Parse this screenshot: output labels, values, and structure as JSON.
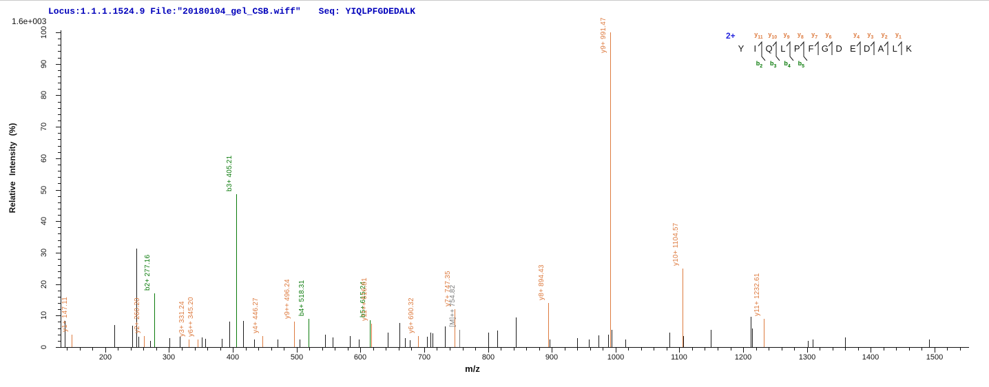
{
  "header": {
    "locus_file": "Locus:1.1.1.1524.9 File:\"20180104_gel_CSB.wiff\"",
    "seq": "Seq: YIQLPFGDEDALK"
  },
  "scale_label": "1.6e+003",
  "colors": {
    "y_ion": "#dd7a3e",
    "b_ion": "#0a7a0a",
    "unassigned": "#1a1a1a",
    "precursor": "#7a7a7a",
    "header_blue": "#0000bb",
    "charge_blue": "#2222dd",
    "axis": "#111111"
  },
  "chart_data": {
    "type": "bar",
    "subtype": "mass-spectrum-stick-plot",
    "title": "",
    "xlabel": "m/z",
    "ylabel": "Relative Intensity (%)",
    "xlim": [
      130,
      1553
    ],
    "ylim": [
      0,
      100
    ],
    "x_major_tick_step": 100,
    "x_minor_tick_step": 20,
    "x_tick_labels": [
      200,
      300,
      400,
      500,
      600,
      700,
      800,
      900,
      1000,
      1100,
      1200,
      1300,
      1400,
      1500
    ],
    "y_major_tick_step": 10,
    "y_minor_tick_step": 2,
    "y_tick_labels": [
      0,
      10,
      20,
      30,
      40,
      50,
      60,
      70,
      80,
      90,
      100
    ],
    "grid": false,
    "legend": "none",
    "peaks": [
      {
        "mz": 136.5,
        "intensity": 8.3,
        "type": "unassigned",
        "label": null
      },
      {
        "mz": 147.11,
        "intensity": 4.0,
        "type": "y",
        "label": "y1+ 147.11"
      },
      {
        "mz": 214.0,
        "intensity": 7.0,
        "type": "unassigned",
        "label": null
      },
      {
        "mz": 242.0,
        "intensity": 6.7,
        "type": "unassigned",
        "label": null
      },
      {
        "mz": 249.0,
        "intensity": 31.4,
        "type": "unassigned",
        "label": null
      },
      {
        "mz": 252.5,
        "intensity": 3.3,
        "type": "unassigned",
        "label": null
      },
      {
        "mz": 260.2,
        "intensity": 3.5,
        "type": "y",
        "label": "y2+ 260.20"
      },
      {
        "mz": 270.0,
        "intensity": 2.0,
        "type": "unassigned",
        "label": null
      },
      {
        "mz": 277.16,
        "intensity": 17.0,
        "type": "b",
        "label": "b2+ 277.16"
      },
      {
        "mz": 301.0,
        "intensity": 2.8,
        "type": "unassigned",
        "label": null
      },
      {
        "mz": 317.0,
        "intensity": 3.3,
        "type": "unassigned",
        "label": null
      },
      {
        "mz": 331.24,
        "intensity": 2.5,
        "type": "y",
        "label": "y3+ 331.24"
      },
      {
        "mz": 345.2,
        "intensity": 2.5,
        "type": "y",
        "label": "y6++ 345.20"
      },
      {
        "mz": 351.0,
        "intensity": 3.0,
        "type": "unassigned",
        "label": null
      },
      {
        "mz": 357.0,
        "intensity": 2.7,
        "type": "unassigned",
        "label": null
      },
      {
        "mz": 383.0,
        "intensity": 2.7,
        "type": "unassigned",
        "label": null
      },
      {
        "mz": 395.0,
        "intensity": 8.1,
        "type": "unassigned",
        "label": null
      },
      {
        "mz": 405.21,
        "intensity": 48.5,
        "type": "b",
        "label": "b3+ 405.21"
      },
      {
        "mz": 416.0,
        "intensity": 8.3,
        "type": "unassigned",
        "label": null
      },
      {
        "mz": 433.0,
        "intensity": 2.5,
        "type": "unassigned",
        "label": null
      },
      {
        "mz": 446.27,
        "intensity": 3.5,
        "type": "y",
        "label": "y4+ 446.27"
      },
      {
        "mz": 470.0,
        "intensity": 2.3,
        "type": "unassigned",
        "label": null
      },
      {
        "mz": 496.24,
        "intensity": 8.0,
        "type": "y",
        "label": "y9++ 496.24"
      },
      {
        "mz": 505.0,
        "intensity": 2.5,
        "type": "unassigned",
        "label": null
      },
      {
        "mz": 518.31,
        "intensity": 9.0,
        "type": "b",
        "label": "b4+ 518.31"
      },
      {
        "mz": 545.0,
        "intensity": 3.9,
        "type": "unassigned",
        "label": null
      },
      {
        "mz": 556.0,
        "intensity": 3.0,
        "type": "unassigned",
        "label": null
      },
      {
        "mz": 583.0,
        "intensity": 3.4,
        "type": "unassigned",
        "label": null
      },
      {
        "mz": 598.0,
        "intensity": 2.5,
        "type": "unassigned",
        "label": null
      },
      {
        "mz": 615.24,
        "intensity": 8.5,
        "type": "b",
        "label": "b5+ 615.24"
      },
      {
        "mz": 616.81,
        "intensity": 7.5,
        "type": "y",
        "label": "y11++ 616.81"
      },
      {
        "mz": 643.0,
        "intensity": 4.6,
        "type": "unassigned",
        "label": null
      },
      {
        "mz": 661.0,
        "intensity": 7.7,
        "type": "unassigned",
        "label": null
      },
      {
        "mz": 670.0,
        "intensity": 2.8,
        "type": "unassigned",
        "label": null
      },
      {
        "mz": 677.0,
        "intensity": 2.2,
        "type": "unassigned",
        "label": null
      },
      {
        "mz": 690.32,
        "intensity": 3.5,
        "type": "y",
        "label": "y6+ 690.32"
      },
      {
        "mz": 704.0,
        "intensity": 3.2,
        "type": "unassigned",
        "label": null
      },
      {
        "mz": 710.0,
        "intensity": 4.5,
        "type": "unassigned",
        "label": null
      },
      {
        "mz": 713.0,
        "intensity": 4.3,
        "type": "unassigned",
        "label": null
      },
      {
        "mz": 732.0,
        "intensity": 6.6,
        "type": "unassigned",
        "label": null
      },
      {
        "mz": 747.35,
        "intensity": 12.0,
        "type": "y",
        "label": "y7+ 747.35"
      },
      {
        "mz": 754.82,
        "intensity": 5.5,
        "type": "precursor",
        "label": "[M]++ 754.82"
      },
      {
        "mz": 801.0,
        "intensity": 4.6,
        "type": "unassigned",
        "label": null
      },
      {
        "mz": 815.0,
        "intensity": 5.2,
        "type": "unassigned",
        "label": null
      },
      {
        "mz": 844.0,
        "intensity": 9.4,
        "type": "unassigned",
        "label": null
      },
      {
        "mz": 894.43,
        "intensity": 14.0,
        "type": "y",
        "label": "y8+ 894.43"
      },
      {
        "mz": 896.5,
        "intensity": 2.5,
        "type": "unassigned",
        "label": null
      },
      {
        "mz": 940.0,
        "intensity": 2.8,
        "type": "unassigned",
        "label": null
      },
      {
        "mz": 958.0,
        "intensity": 2.3,
        "type": "unassigned",
        "label": null
      },
      {
        "mz": 973.0,
        "intensity": 3.7,
        "type": "unassigned",
        "label": null
      },
      {
        "mz": 988.0,
        "intensity": 3.9,
        "type": "unassigned",
        "label": null
      },
      {
        "mz": 991.47,
        "intensity": 100.0,
        "type": "y",
        "label": "y9+ 991.47",
        "label_dy": 34
      },
      {
        "mz": 993.5,
        "intensity": 5.5,
        "type": "unassigned",
        "label": null
      },
      {
        "mz": 1015.0,
        "intensity": 2.5,
        "type": "unassigned",
        "label": null
      },
      {
        "mz": 1084.0,
        "intensity": 4.6,
        "type": "unassigned",
        "label": null
      },
      {
        "mz": 1104.57,
        "intensity": 25.0,
        "type": "y",
        "label": "y10+ 1104.57"
      },
      {
        "mz": 1106.5,
        "intensity": 3.5,
        "type": "unassigned",
        "label": null
      },
      {
        "mz": 1149.0,
        "intensity": 5.5,
        "type": "unassigned",
        "label": null
      },
      {
        "mz": 1212.0,
        "intensity": 9.7,
        "type": "unassigned",
        "label": null
      },
      {
        "mz": 1214.5,
        "intensity": 6.0,
        "type": "unassigned",
        "label": null
      },
      {
        "mz": 1232.61,
        "intensity": 9.0,
        "type": "y",
        "label": "y11+ 1232.61"
      },
      {
        "mz": 1301.0,
        "intensity": 2.0,
        "type": "unassigned",
        "label": null
      },
      {
        "mz": 1309.0,
        "intensity": 2.5,
        "type": "unassigned",
        "label": null
      },
      {
        "mz": 1360.0,
        "intensity": 3.0,
        "type": "unassigned",
        "label": null
      },
      {
        "mz": 1491.0,
        "intensity": 2.3,
        "type": "unassigned",
        "label": null
      }
    ]
  },
  "sequence_annotation": {
    "charge": "2+",
    "residues": [
      "Y",
      "I",
      "Q",
      "L",
      "P",
      "F",
      "G",
      "D",
      "E",
      "D",
      "A",
      "L",
      "K"
    ],
    "cleavages": [
      {
        "gap_after_index": 1,
        "y": "y11",
        "b": "b2"
      },
      {
        "gap_after_index": 2,
        "y": "y10",
        "b": "b3"
      },
      {
        "gap_after_index": 3,
        "y": "y9",
        "b": "b4"
      },
      {
        "gap_after_index": 4,
        "y": "y8",
        "b": "b5"
      },
      {
        "gap_after_index": 5,
        "y": "y7",
        "b": null
      },
      {
        "gap_after_index": 6,
        "y": "y6",
        "b": null
      },
      {
        "gap_after_index": 8,
        "y": "y4",
        "b": null
      },
      {
        "gap_after_index": 9,
        "y": "y3",
        "b": null
      },
      {
        "gap_after_index": 10,
        "y": "y2",
        "b": null
      },
      {
        "gap_after_index": 11,
        "y": "y1",
        "b": null
      }
    ]
  }
}
